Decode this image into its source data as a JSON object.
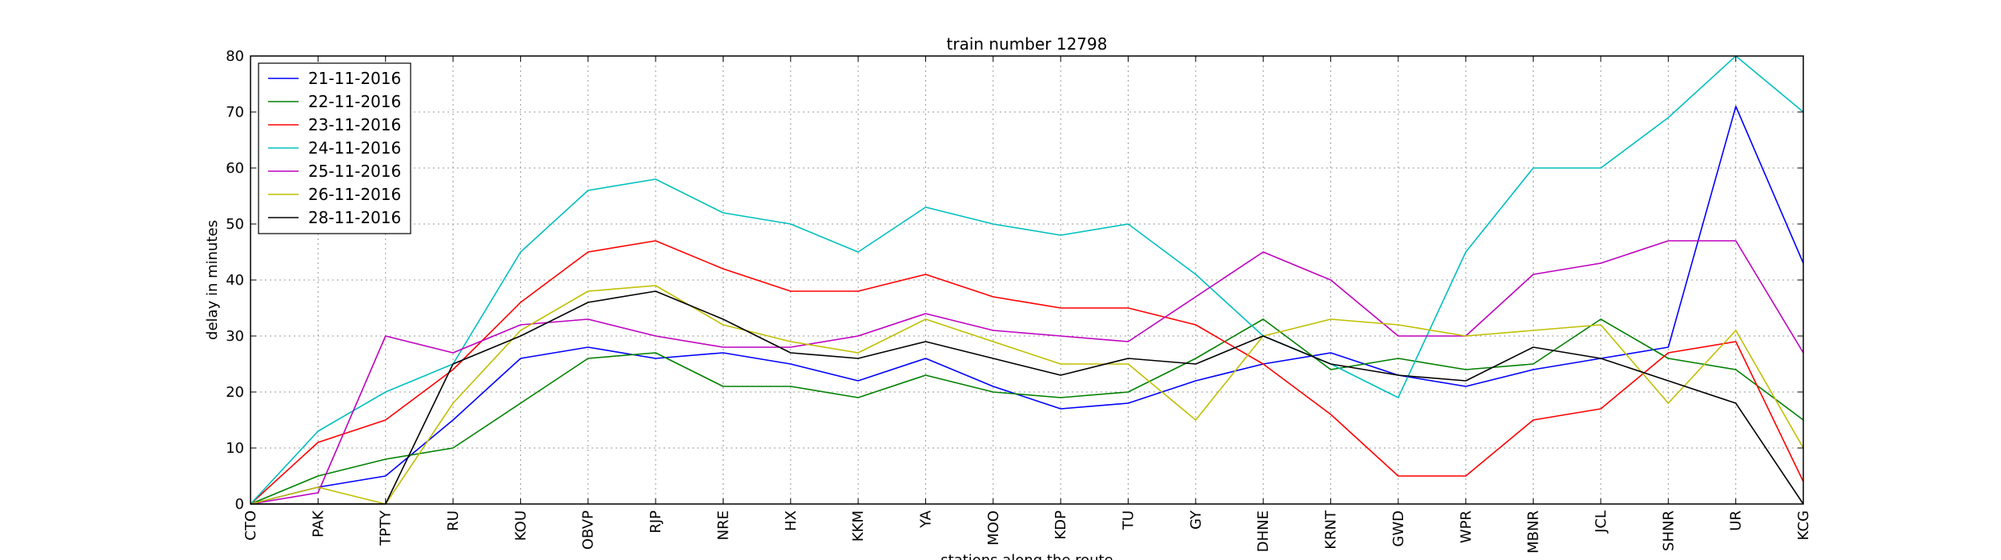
{
  "chart_data": {
    "type": "line",
    "title": "train number 12798",
    "xlabel": "stations along the route",
    "ylabel": "delay in minutes",
    "ylim": [
      0,
      80
    ],
    "yticks": [
      0,
      10,
      20,
      30,
      40,
      50,
      60,
      70,
      80
    ],
    "grid": true,
    "legend_position": "top-left",
    "categories": [
      "CTO",
      "PAK",
      "TPTY",
      "RU",
      "KOU",
      "OBVP",
      "RJP",
      "NRE",
      "HX",
      "KKM",
      "YA",
      "MOO",
      "KDP",
      "TU",
      "GY",
      "DHNE",
      "KRNT",
      "GWD",
      "WPR",
      "MBNR",
      "JCL",
      "SHNR",
      "UR",
      "KCG"
    ],
    "series": [
      {
        "name": "21-11-2016",
        "color": "#0000ff",
        "values": [
          0,
          3,
          5,
          15,
          26,
          28,
          26,
          27,
          25,
          22,
          26,
          21,
          17,
          18,
          22,
          25,
          27,
          23,
          21,
          24,
          26,
          28,
          71,
          43
        ]
      },
      {
        "name": "22-11-2016",
        "color": "#008000",
        "values": [
          0,
          5,
          8,
          10,
          18,
          26,
          27,
          21,
          21,
          19,
          23,
          20,
          19,
          20,
          26,
          33,
          24,
          26,
          24,
          25,
          33,
          26,
          24,
          15
        ]
      },
      {
        "name": "23-11-2016",
        "color": "#ff0000",
        "values": [
          0,
          11,
          15,
          24,
          36,
          45,
          47,
          42,
          38,
          38,
          41,
          37,
          35,
          35,
          32,
          25,
          16,
          5,
          5,
          15,
          17,
          27,
          29,
          4
        ]
      },
      {
        "name": "24-11-2016",
        "color": "#00bfbf",
        "values": [
          0,
          13,
          20,
          25,
          45,
          56,
          58,
          52,
          50,
          45,
          53,
          50,
          48,
          50,
          41,
          30,
          25,
          19,
          45,
          60,
          60,
          69,
          80,
          70
        ]
      },
      {
        "name": "25-11-2016",
        "color": "#bf00bf",
        "values": [
          0,
          2,
          30,
          27,
          32,
          33,
          30,
          28,
          28,
          30,
          34,
          31,
          30,
          29,
          37,
          45,
          40,
          30,
          30,
          41,
          43,
          47,
          47,
          27
        ]
      },
      {
        "name": "26-11-2016",
        "color": "#bfbf00",
        "values": [
          0,
          3,
          0,
          18,
          31,
          38,
          39,
          32,
          29,
          27,
          33,
          29,
          25,
          25,
          15,
          30,
          33,
          32,
          30,
          31,
          32,
          18,
          31,
          10
        ]
      },
      {
        "name": "28-11-2016",
        "color": "#000000",
        "values": [
          0,
          0,
          0,
          25,
          30,
          36,
          38,
          33,
          27,
          26,
          29,
          26,
          23,
          26,
          25,
          30,
          25,
          23,
          22,
          28,
          26,
          22,
          18,
          0
        ]
      }
    ]
  }
}
